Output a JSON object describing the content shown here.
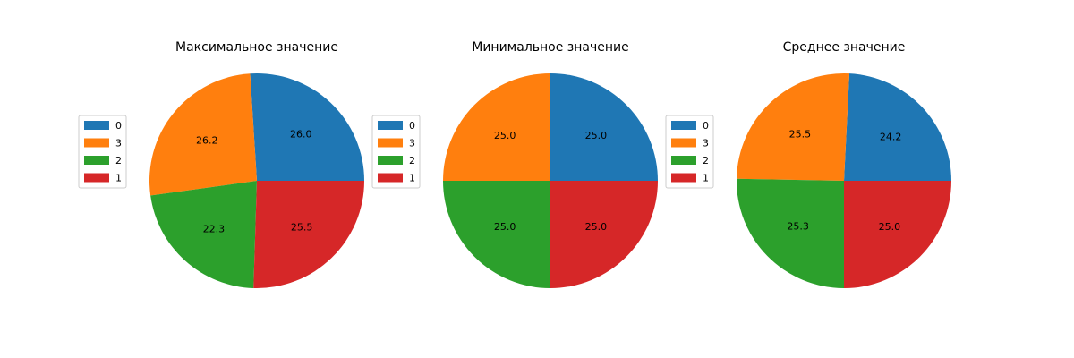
{
  "chart_data": [
    {
      "type": "pie",
      "title": "Максимальное значение",
      "categories": [
        "0",
        "3",
        "2",
        "1"
      ],
      "values": [
        26.0,
        26.2,
        22.3,
        25.5
      ],
      "labels": [
        "26.0",
        "26.2",
        "22.3",
        "25.5"
      ],
      "colors": [
        "#1f77b4",
        "#ff7f0e",
        "#2ca02c",
        "#d62728"
      ],
      "legend": "left"
    },
    {
      "type": "pie",
      "title": "Минимальное значение",
      "categories": [
        "0",
        "3",
        "2",
        "1"
      ],
      "values": [
        25.0,
        25.0,
        25.0,
        25.0
      ],
      "labels": [
        "25.0",
        "25.0",
        "25.0",
        "25.0"
      ],
      "colors": [
        "#1f77b4",
        "#ff7f0e",
        "#2ca02c",
        "#d62728"
      ],
      "legend": "left"
    },
    {
      "type": "pie",
      "title": "Среднее значение",
      "categories": [
        "0",
        "3",
        "2",
        "1"
      ],
      "values": [
        24.2,
        25.5,
        25.3,
        25.0
      ],
      "labels": [
        "24.2",
        "25.5",
        "25.3",
        "25.0"
      ],
      "colors": [
        "#1f77b4",
        "#ff7f0e",
        "#2ca02c",
        "#d62728"
      ],
      "legend": "left"
    }
  ]
}
